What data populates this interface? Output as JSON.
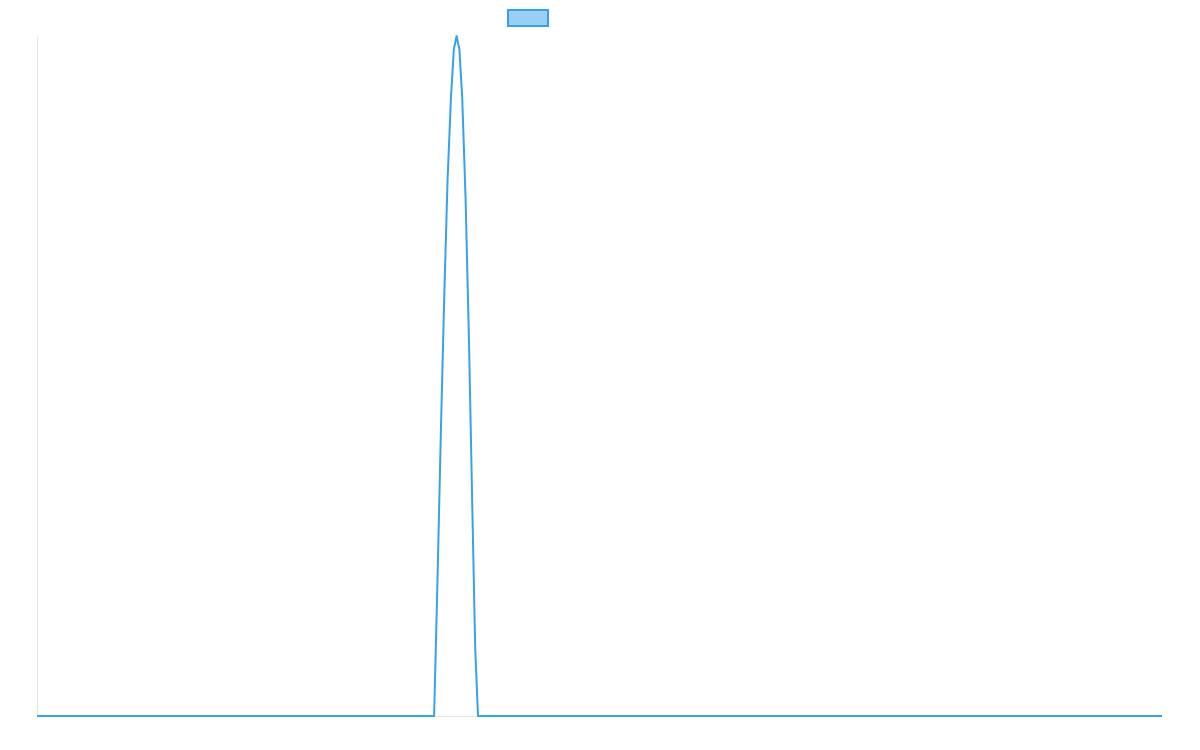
{
  "chart_data": {
    "type": "line",
    "title": "",
    "xlabel": "",
    "ylabel": "",
    "xlim": [
      0,
      100
    ],
    "ylim": [
      0,
      1
    ],
    "grid": false,
    "legend": "top",
    "series": [
      {
        "color": "#36a2eb",
        "fill": "#9ad0f5",
        "points": [
          [
            0,
            0
          ],
          [
            35.3,
            0
          ],
          [
            35.6,
            0.2
          ],
          [
            35.9,
            0.42
          ],
          [
            36.2,
            0.62
          ],
          [
            36.5,
            0.79
          ],
          [
            36.8,
            0.91
          ],
          [
            37.05,
            0.98
          ],
          [
            37.3,
            1
          ],
          [
            37.55,
            0.98
          ],
          [
            37.8,
            0.91
          ],
          [
            38.1,
            0.76
          ],
          [
            38.4,
            0.55
          ],
          [
            38.7,
            0.3
          ],
          [
            38.95,
            0.1
          ],
          [
            39.2,
            0
          ],
          [
            100,
            0
          ]
        ]
      }
    ]
  }
}
